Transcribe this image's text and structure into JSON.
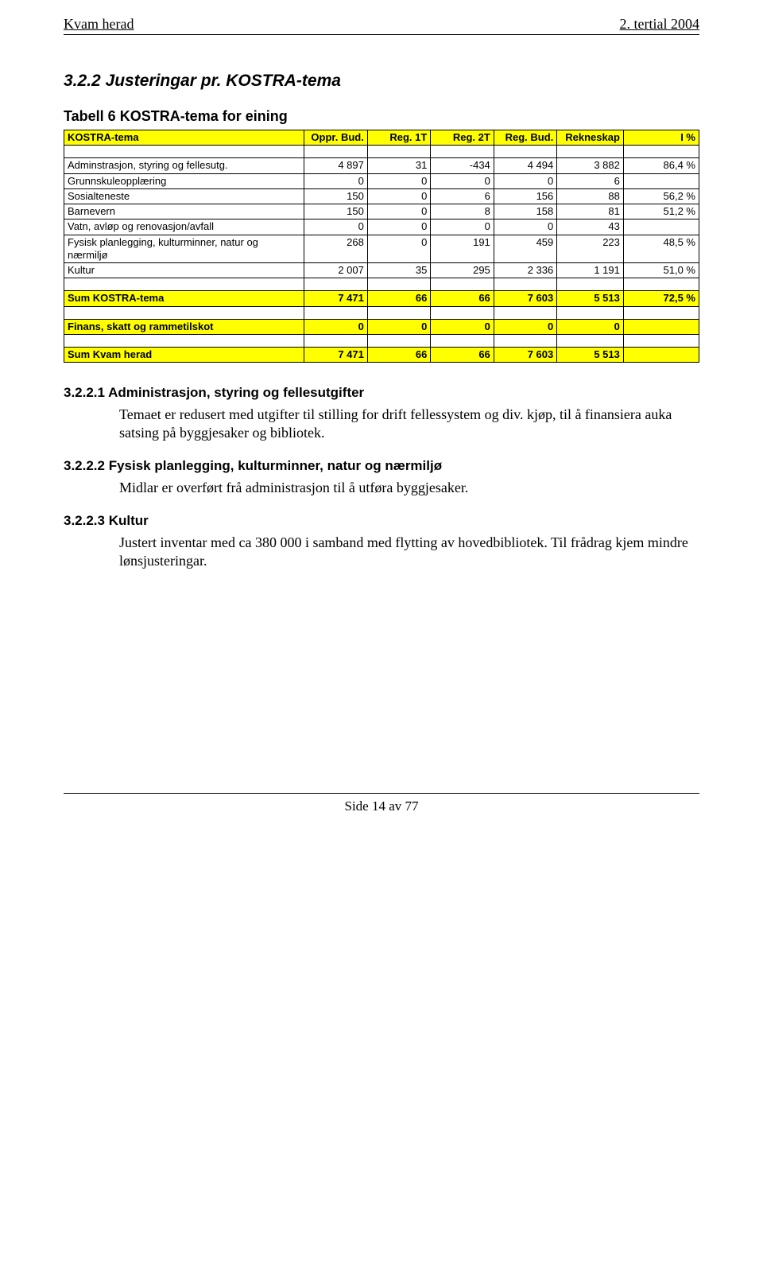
{
  "header": {
    "left": "Kvam herad",
    "right": "2. tertial 2004"
  },
  "section_title": "3.2.2  Justeringar pr. KOSTRA-tema",
  "table_caption": "Tabell 6 KOSTRA-tema for eining",
  "table": {
    "columns": [
      "KOSTRA-tema",
      "Oppr. Bud.",
      "Reg. 1T",
      "Reg. 2T",
      "Reg. Bud.",
      "Rekneskap",
      "I %"
    ],
    "rows": [
      {
        "label": "Adminstrasjon, styring og fellesutg.",
        "v": [
          "4 897",
          "31",
          "-434",
          "4 494",
          "3 882",
          "86,4 %"
        ]
      },
      {
        "label": "Grunnskuleopplæring",
        "v": [
          "0",
          "0",
          "0",
          "0",
          "6",
          ""
        ]
      },
      {
        "label": "Sosialteneste",
        "v": [
          "150",
          "0",
          "6",
          "156",
          "88",
          "56,2 %"
        ]
      },
      {
        "label": "Barnevern",
        "v": [
          "150",
          "0",
          "8",
          "158",
          "81",
          "51,2 %"
        ]
      },
      {
        "label": "Vatn, avløp og renovasjon/avfall",
        "v": [
          "0",
          "0",
          "0",
          "0",
          "43",
          ""
        ]
      },
      {
        "label": "Fysisk planlegging, kulturminner, natur og nærmiljø",
        "v": [
          "268",
          "0",
          "191",
          "459",
          "223",
          "48,5 %"
        ]
      },
      {
        "label": "Kultur",
        "v": [
          "2 007",
          "35",
          "295",
          "2 336",
          "1 191",
          "51,0 %"
        ]
      }
    ],
    "sum_kostra": {
      "label": "Sum KOSTRA-tema",
      "v": [
        "7 471",
        "66",
        "66",
        "7 603",
        "5 513",
        "72,5 %"
      ]
    },
    "finans": {
      "label": "Finans, skatt og rammetilskot",
      "v": [
        "0",
        "0",
        "0",
        "0",
        "0",
        ""
      ]
    },
    "sum_kvam": {
      "label": "Sum Kvam herad",
      "v": [
        "7 471",
        "66",
        "66",
        "7 603",
        "5 513",
        ""
      ]
    }
  },
  "sub1": {
    "title": "3.2.2.1  Administrasjon, styring og fellesutgifter",
    "text": "Temaet er redusert med utgifter til stilling for drift fellessystem og div. kjøp, til å finansiera auka satsing på byggjesaker og bibliotek."
  },
  "sub2": {
    "title": "3.2.2.2  Fysisk planlegging, kulturminner, natur og nærmiljø",
    "text": "Midlar er overført frå administrasjon til å utføra byggjesaker."
  },
  "sub3": {
    "title": "3.2.2.3  Kultur",
    "text": "Justert inventar med ca 380 000 i samband med flytting av hovedbibliotek. Til frådrag kjem mindre lønsjusteringar."
  },
  "footer": "Side 14 av 77"
}
